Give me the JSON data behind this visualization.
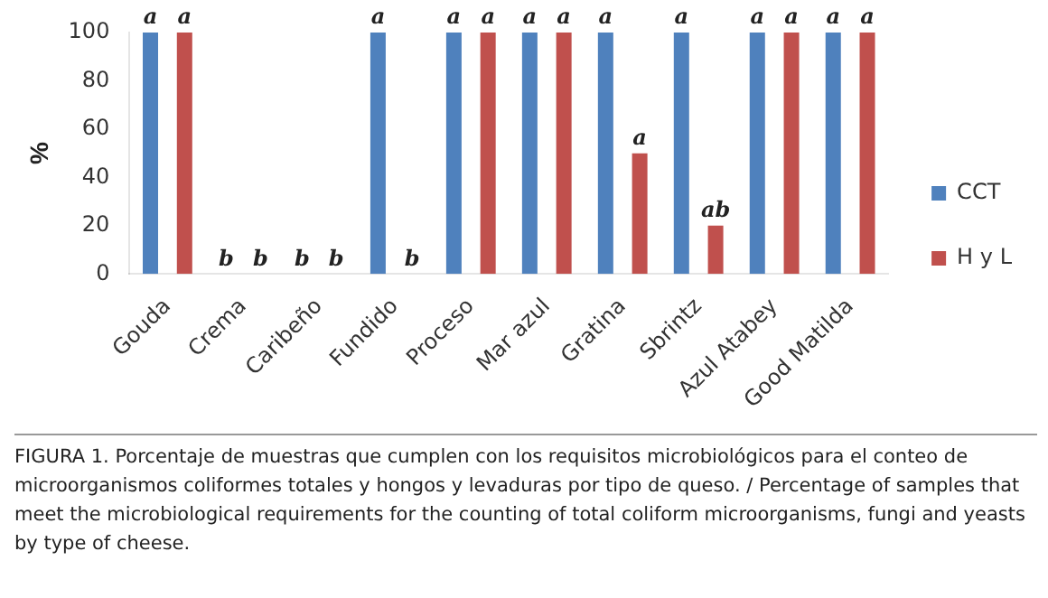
{
  "chart_data": {
    "type": "bar",
    "ylabel": "%",
    "categories": [
      "Gouda",
      "Crema",
      "Caribeño",
      "Fundido",
      "Proceso",
      "Mar azul",
      "Gratina",
      "Sbrintz",
      "Azul Atabey",
      "Good Matilda"
    ],
    "series": [
      {
        "name": "CCT",
        "color": "#4f81bd",
        "values": [
          100,
          0,
          0,
          100,
          100,
          100,
          100,
          100,
          100,
          100
        ],
        "value_labels": [
          "a",
          "b",
          "b",
          "a",
          "a",
          "a",
          "a",
          "a",
          "a",
          "a"
        ]
      },
      {
        "name": "H y L",
        "color": "#c0504d",
        "values": [
          100,
          0,
          0,
          0,
          100,
          100,
          50,
          20,
          100,
          100
        ],
        "value_labels": [
          "a",
          "b",
          "b",
          "b",
          "a",
          "a",
          "a",
          "ab",
          "a",
          "a"
        ]
      }
    ],
    "ylim": [
      0,
      100
    ],
    "yticks": [
      0,
      20,
      40,
      60,
      80,
      100
    ],
    "grid": false,
    "legend": "right",
    "annotations": [
      "FIGURA 1. Porcentaje de muestras que cumplen con los requisitos microbiológicos para el conteo de microorganismos coliformes totales y hongos y levaduras por tipo de queso. / Percentage of samples that meet the microbiological requirements for the counting of total coliform microorganisms, fungi and yeasts by type of cheese."
    ]
  }
}
